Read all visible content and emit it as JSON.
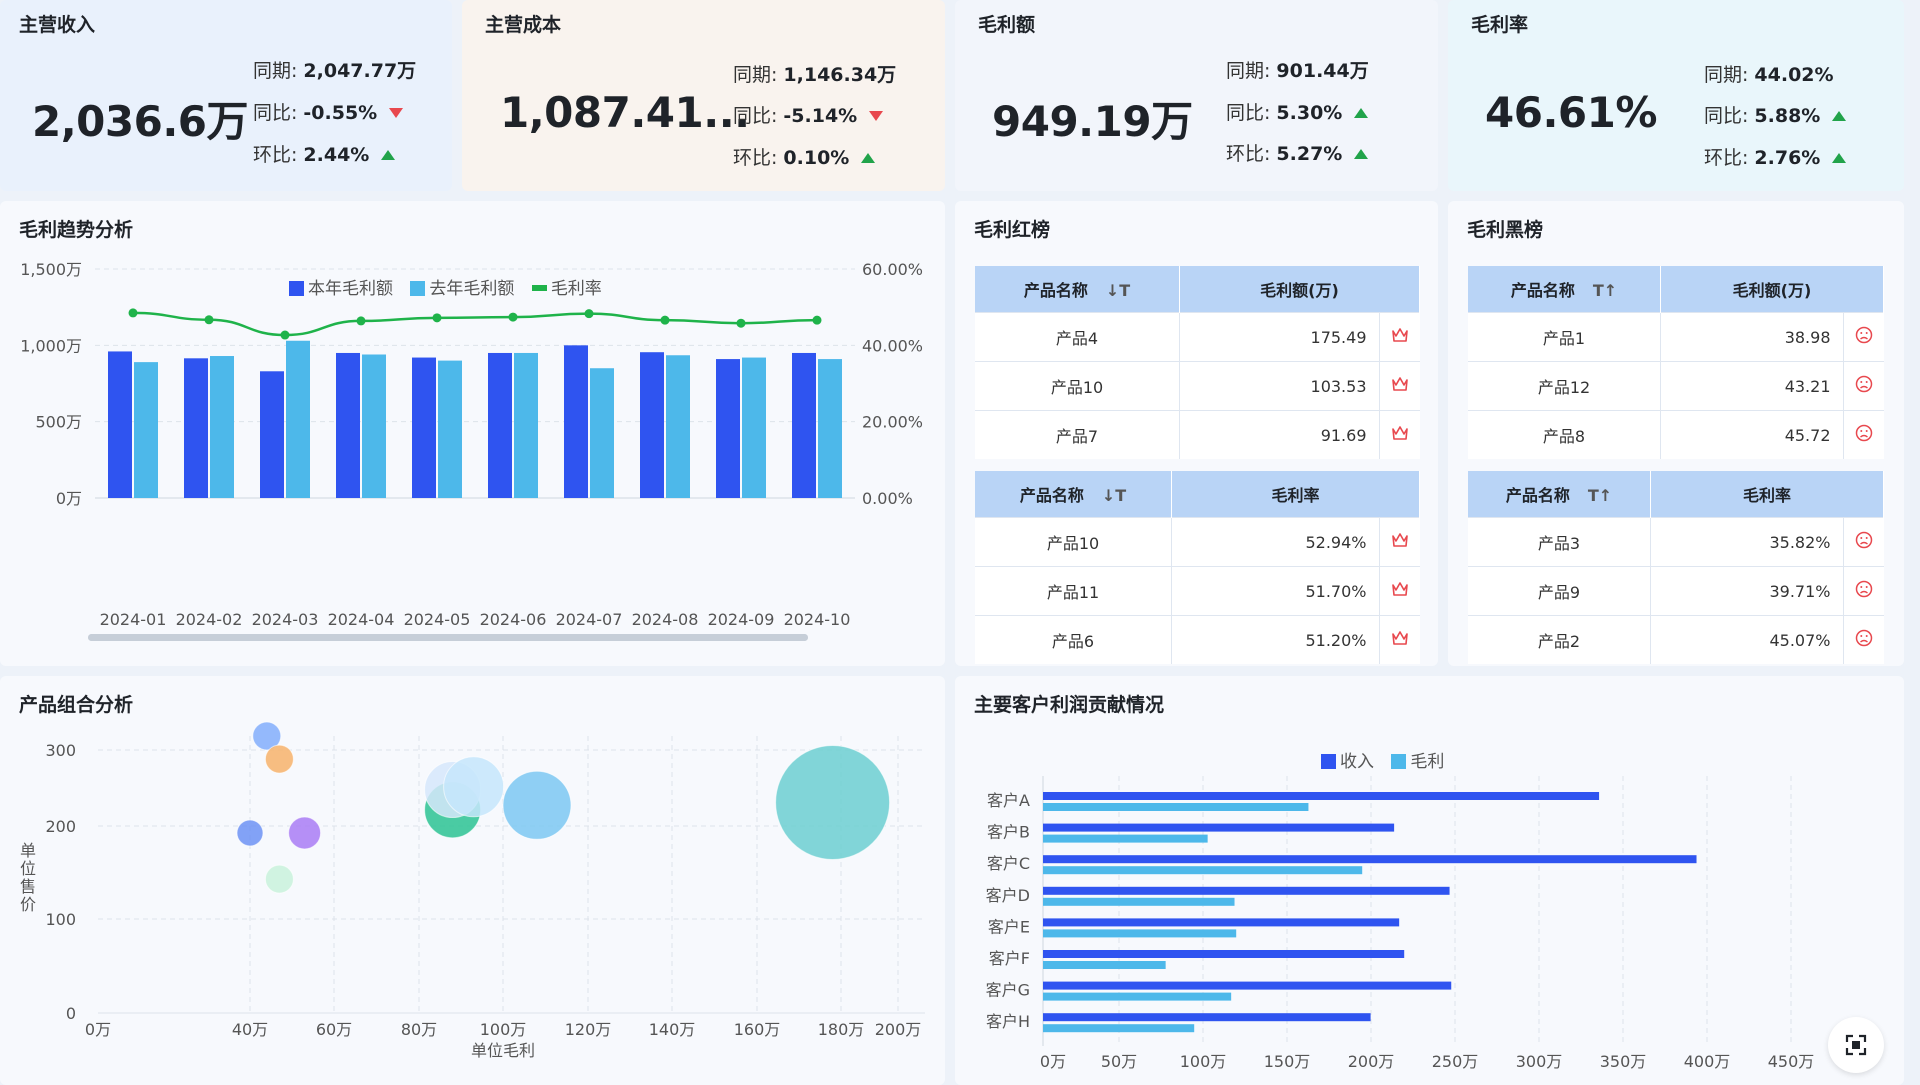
{
  "kpis": [
    {
      "title": "主营收入",
      "value": "2,036.6万",
      "rows": [
        {
          "label": "同期:",
          "value": "2,047.77万",
          "trend": ""
        },
        {
          "label": "同比:",
          "value": "-0.55%",
          "trend": "down"
        },
        {
          "label": "环比:",
          "value": "2.44%",
          "trend": "up"
        }
      ]
    },
    {
      "title": "主营成本",
      "value": "1,087.41...",
      "rows": [
        {
          "label": "同期:",
          "value": "1,146.34万",
          "trend": ""
        },
        {
          "label": "同比:",
          "value": "-5.14%",
          "trend": "down"
        },
        {
          "label": "环比:",
          "value": "0.10%",
          "trend": "up"
        }
      ]
    },
    {
      "title": "毛利额",
      "value": "949.19万",
      "rows": [
        {
          "label": "同期:",
          "value": "901.44万",
          "trend": ""
        },
        {
          "label": "同比:",
          "value": "5.30%",
          "trend": "up"
        },
        {
          "label": "环比:",
          "value": "5.27%",
          "trend": "up"
        }
      ]
    },
    {
      "title": "毛利率",
      "value": "46.61%",
      "rows": [
        {
          "label": "同期:",
          "value": "44.02%",
          "trend": ""
        },
        {
          "label": "同比:",
          "value": "5.88%",
          "trend": "up"
        },
        {
          "label": "环比:",
          "value": "2.76%",
          "trend": "up"
        }
      ]
    }
  ],
  "colors": {
    "blue": "#2f54f0",
    "lightblue": "#4db8ea",
    "green": "#1fb34a",
    "up": "#21a34a",
    "down": "#e8484e",
    "crown": "#e8484e"
  },
  "trend_panel": {
    "title": "毛利趋势分析",
    "legend": [
      "本年毛利额",
      "去年毛利额",
      "毛利率"
    ]
  },
  "red_panel": {
    "title": "毛利红榜",
    "tables": [
      {
        "headers": [
          "产品名称",
          "毛利额(万)"
        ],
        "sort_icon": "sort-desc-icon",
        "rows": [
          [
            "产品4",
            "175.49"
          ],
          [
            "产品10",
            "103.53"
          ],
          [
            "产品7",
            "91.69"
          ]
        ],
        "row_icon": "crown-icon"
      },
      {
        "headers": [
          "产品名称",
          "毛利率"
        ],
        "sort_icon": "sort-desc-icon",
        "rows": [
          [
            "产品10",
            "52.94%"
          ],
          [
            "产品11",
            "51.70%"
          ],
          [
            "产品6",
            "51.20%"
          ]
        ],
        "row_icon": "crown-icon"
      }
    ]
  },
  "black_panel": {
    "title": "毛利黑榜",
    "tables": [
      {
        "headers": [
          "产品名称",
          "毛利额(万)"
        ],
        "sort_icon": "sort-asc-icon",
        "rows": [
          [
            "产品1",
            "38.98"
          ],
          [
            "产品12",
            "43.21"
          ],
          [
            "产品8",
            "45.72"
          ]
        ],
        "row_icon": "sad-face-icon"
      },
      {
        "headers": [
          "产品名称",
          "毛利率"
        ],
        "sort_icon": "sort-asc-icon",
        "rows": [
          [
            "产品3",
            "35.82%"
          ],
          [
            "产品9",
            "39.71%"
          ],
          [
            "产品2",
            "45.07%"
          ]
        ],
        "row_icon": "sad-face-icon"
      }
    ]
  },
  "bubble_panel": {
    "title": "产品组合分析"
  },
  "customer_panel": {
    "title": "主要客户利润贡献情况",
    "legend": [
      "收入",
      "毛利"
    ]
  },
  "fullscreen_icon": "fullscreen-icon",
  "chart_data": [
    {
      "type": "bar",
      "categories": [
        "2024-01",
        "2024-02",
        "2024-03",
        "2024-04",
        "2024-05",
        "2024-06",
        "2024-07",
        "2024-08",
        "2024-09",
        "2024-10"
      ],
      "series": [
        {
          "name": "本年毛利额",
          "type": "bar",
          "values": [
            960,
            915,
            830,
            950,
            920,
            950,
            1000,
            955,
            910,
            950
          ]
        },
        {
          "name": "去年毛利额",
          "type": "bar",
          "values": [
            890,
            930,
            1030,
            940,
            900,
            950,
            850,
            935,
            920,
            910
          ]
        },
        {
          "name": "毛利率",
          "type": "line",
          "axis": "right",
          "values": [
            48.5,
            46.7,
            42.7,
            46.4,
            47.2,
            47.4,
            48.3,
            46.6,
            45.8,
            46.6
          ]
        }
      ],
      "y_ticks": [
        "0万",
        "500万",
        "1,000万",
        "1,500万"
      ],
      "ylim": [
        0,
        1500
      ],
      "y2_ticks": [
        "0.00%",
        "20.00%",
        "40.00%",
        "60.00%"
      ],
      "y2lim": [
        0,
        60
      ],
      "grid": true,
      "legend_position": "top"
    },
    {
      "type": "scatter",
      "xlabel": "单位毛利",
      "ylabel": "单位售价",
      "x_ticks": [
        "0万",
        "40万",
        "60万",
        "80万",
        "100万",
        "120万",
        "140万",
        "160万",
        "180万",
        "200万"
      ],
      "x_tick_values": [
        0,
        40,
        60,
        80,
        100,
        120,
        140,
        160,
        180,
        200
      ],
      "xlim": [
        0,
        200
      ],
      "y_ticks": [
        "0",
        "100",
        "200",
        "300"
      ],
      "ylim": [
        0,
        300
      ],
      "points": [
        {
          "x": 44,
          "y": 300,
          "size": 14,
          "color": "#82aefc"
        },
        {
          "x": 47,
          "y": 275,
          "size": 14,
          "color": "#f7b36b"
        },
        {
          "x": 40,
          "y": 195,
          "size": 13,
          "color": "#6d93f5"
        },
        {
          "x": 53,
          "y": 195,
          "size": 16,
          "color": "#a97cf5"
        },
        {
          "x": 47,
          "y": 145,
          "size": 14,
          "color": "#c9f2dc"
        },
        {
          "x": 88,
          "y": 220,
          "size": 28,
          "color": "#2cc393"
        },
        {
          "x": 88,
          "y": 242,
          "size": 28,
          "color": "#d6e7fb"
        },
        {
          "x": 93,
          "y": 245,
          "size": 30,
          "color": "#c6e6fb"
        },
        {
          "x": 108,
          "y": 225,
          "size": 34,
          "color": "#7cc8f2"
        },
        {
          "x": 178,
          "y": 228,
          "size": 57,
          "color": "#6ccfd1"
        }
      ],
      "grid": true
    },
    {
      "type": "bar",
      "orientation": "horizontal",
      "categories": [
        "客户A",
        "客户B",
        "客户C",
        "客户D",
        "客户E",
        "客户F",
        "客户G",
        "客户H"
      ],
      "series": [
        {
          "name": "收入",
          "values": [
            331,
            209,
            389,
            242,
            212,
            215,
            243,
            195
          ]
        },
        {
          "name": "毛利",
          "values": [
            158,
            98,
            190,
            114,
            115,
            73,
            112,
            90
          ]
        }
      ],
      "x_ticks": [
        "0万",
        "50万",
        "100万",
        "150万",
        "200万",
        "250万",
        "300万",
        "350万",
        "400万",
        "450万"
      ],
      "xlim": [
        0,
        450
      ],
      "grid": true,
      "legend_position": "top"
    }
  ]
}
